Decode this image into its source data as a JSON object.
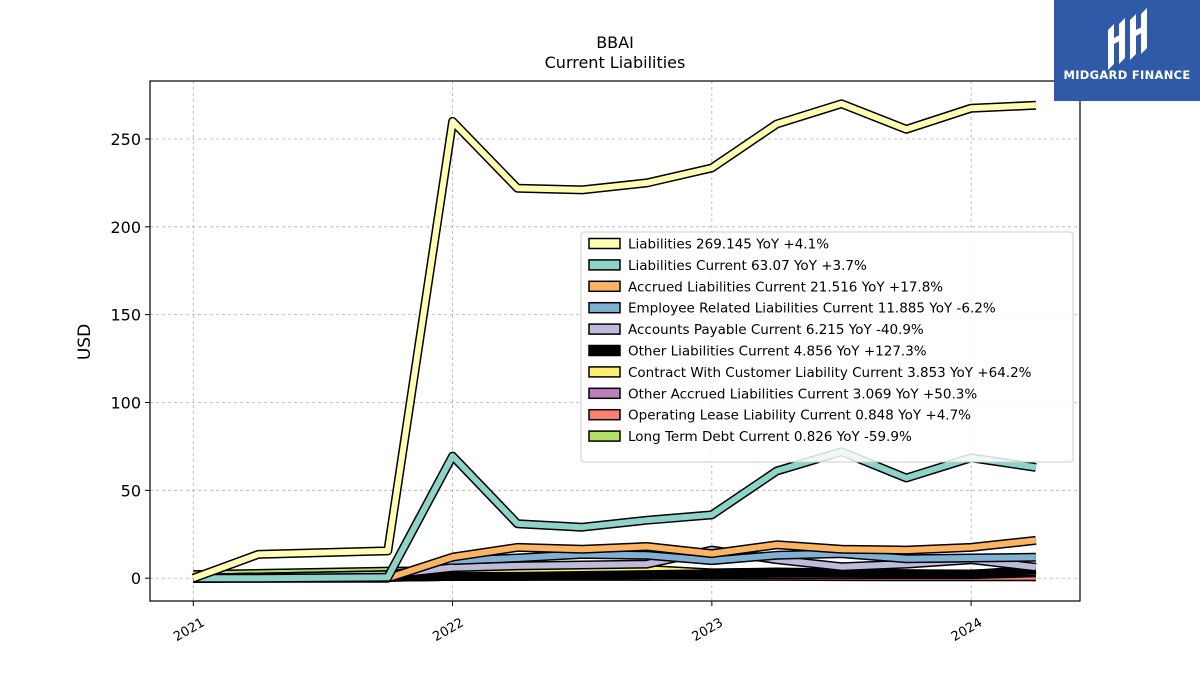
{
  "logo": {
    "text": "MIDGARD FINANCE",
    "color": "#2e5aa8"
  },
  "chart_data": {
    "type": "line",
    "title": "BBAI",
    "subtitle": "Current  Liabilities",
    "xlabel": "",
    "ylabel": "USD",
    "xlim": [
      2020.833,
      2024.42
    ],
    "ylim": [
      -13,
      283
    ],
    "yticks": [
      0,
      50,
      100,
      150,
      200,
      250
    ],
    "xticks": [
      2021,
      2022,
      2023,
      2024
    ],
    "xtick_labels": [
      "2021",
      "2022",
      "2023",
      "2024"
    ],
    "grid": true,
    "legend_position": "center-right",
    "series": [
      {
        "name": "Liabilities",
        "legend": "Liabilities  269.145 YoY +4.1%",
        "color": "#ffffb3",
        "x": [
          2021.0,
          2021.25,
          2021.75,
          2022.0,
          2022.25,
          2022.5,
          2022.75,
          2023.0,
          2023.25,
          2023.5,
          2023.75,
          2024.0,
          2024.25
        ],
        "y": [
          0,
          13.5,
          15.5,
          260,
          222,
          221,
          225,
          233.5,
          258.5,
          270,
          255.5,
          267.5,
          269.145
        ]
      },
      {
        "name": "Liabilities Current",
        "legend": "Liabilities Current  63.07 YoY +3.7%",
        "color": "#8dd3c7",
        "x": [
          2021.0,
          2021.25,
          2021.75,
          2022.0,
          2022.25,
          2022.5,
          2022.75,
          2023.0,
          2023.25,
          2023.5,
          2023.75,
          2024.0,
          2024.25
        ],
        "y": [
          0,
          0,
          0.5,
          69.5,
          31,
          29,
          33,
          36,
          61,
          72,
          57,
          68.5,
          63.07
        ]
      },
      {
        "name": "Accrued Liabilities Current",
        "legend": "Accrued Liabilities Current  21.516 YoY +17.8%",
        "color": "#fdb462",
        "x": [
          2021.0,
          2021.25,
          2021.75,
          2022.0,
          2022.25,
          2022.5,
          2022.75,
          2023.0,
          2023.25,
          2023.5,
          2023.75,
          2024.0,
          2024.25
        ],
        "y": [
          0,
          0,
          0,
          12,
          17.5,
          16.5,
          18,
          14,
          19,
          16.5,
          16,
          17.5,
          21.516
        ]
      },
      {
        "name": "Employee Related Liabilities Current",
        "legend": "Employee Related Liabilities Current  11.885 YoY -6.2%",
        "color": "#80b1d3",
        "x": [
          2022.0,
          2022.25,
          2022.5,
          2022.75,
          2023.0,
          2023.25,
          2023.5,
          2023.75,
          2024.0,
          2024.25
        ],
        "y": [
          10,
          11.5,
          13.5,
          13,
          10,
          13,
          14,
          11,
          11.5,
          11.885
        ]
      },
      {
        "name": "Accounts Payable Current",
        "legend": "Accounts Payable Current  6.215 YoY -40.9%",
        "color": "#bebada",
        "x": [
          2021.0,
          2021.75,
          2022.0,
          2022.25,
          2022.5,
          2022.75,
          2023.0,
          2023.25,
          2023.5,
          2023.75,
          2024.0,
          2024.25
        ],
        "y": [
          0,
          2,
          6,
          7,
          7.5,
          8,
          16,
          10.5,
          6.5,
          8,
          10.5,
          6.215
        ]
      },
      {
        "name": "Other Liabilities Current",
        "legend": "Other Liabilities Current  4.856 YoY +127.3%",
        "color": "#000000",
        "x": [
          2021.0,
          2021.75,
          2022.0,
          2022.25,
          2022.5,
          2022.75,
          2023.0,
          2023.25,
          2023.5,
          2023.75,
          2024.0,
          2024.25
        ],
        "y": [
          0,
          0.5,
          1,
          1,
          1.5,
          2,
          2.5,
          3,
          3,
          2.5,
          2.1,
          4.856
        ]
      },
      {
        "name": "Contract With Customer Liability Current",
        "legend": "Contract With Customer Liability Current  3.853 YoY +64.2%",
        "color": "#ffed6f",
        "x": [
          2021.0,
          2021.75,
          2022.0,
          2022.25,
          2022.5,
          2022.75,
          2023.0,
          2023.25,
          2023.5,
          2023.75,
          2024.0,
          2024.25
        ],
        "y": [
          0,
          2,
          3,
          4,
          4,
          5,
          3,
          3.5,
          3,
          2.5,
          2.35,
          3.853
        ]
      },
      {
        "name": "Other Accrued Liabilities Current",
        "legend": "Other Accrued Liabilities Current  3.069 YoY +50.3%",
        "color": "#bc80bd",
        "x": [
          2021.0,
          2021.75,
          2022.0,
          2022.25,
          2022.5,
          2022.75,
          2023.0,
          2023.25,
          2023.5,
          2023.75,
          2024.0,
          2024.25
        ],
        "y": [
          0,
          0.5,
          1,
          1.5,
          2,
          2,
          2,
          2,
          2,
          2,
          2.04,
          3.069
        ]
      },
      {
        "name": "Operating Lease Liability Current",
        "legend": "Operating Lease Liability Current  0.848 YoY +4.7%",
        "color": "#fb8072",
        "x": [
          2021.0,
          2021.75,
          2022.0,
          2022.25,
          2022.5,
          2022.75,
          2023.0,
          2023.25,
          2023.5,
          2023.75,
          2024.0,
          2024.25
        ],
        "y": [
          0,
          0.5,
          1,
          1,
          1,
          1,
          1,
          1,
          0.9,
          0.8,
          0.81,
          0.848
        ]
      },
      {
        "name": "Long Term Debt Current",
        "legend": "Long Term Debt Current  0.826 YoY -59.9%",
        "color": "#b3de69",
        "x": [
          2021.0,
          2021.75,
          2022.0,
          2022.25,
          2022.5,
          2022.75,
          2023.0,
          2023.25,
          2023.5,
          2023.75,
          2024.0,
          2024.25
        ],
        "y": [
          2,
          4,
          4,
          3,
          2,
          1,
          2,
          1.5,
          1,
          1.5,
          2,
          0.826
        ]
      }
    ]
  }
}
